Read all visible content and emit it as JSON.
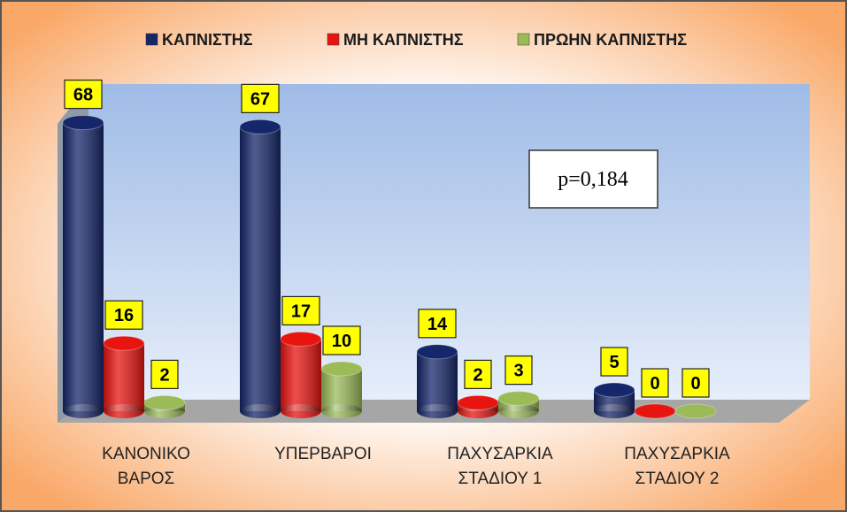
{
  "chart_data": {
    "type": "bar3d",
    "categories": [
      "ΚΑΝΟΝΙΚΟ ΒΑΡΟΣ",
      "ΥΠΕΡΒΑΡΟΙ",
      "ΠΑΧΥΣΑΡΚΙΑ ΣΤΑΔΙΟΥ 1",
      "ΠΑΧΥΣΑΡΚΙΑ ΣΤΑΔΙΟΥ 2"
    ],
    "series": [
      {
        "name": "ΚΑΠΝΙΣΤΗΣ",
        "color": "#16266a",
        "values": [
          68,
          67,
          14,
          5
        ]
      },
      {
        "name": "ΜΗ ΚΑΠΝΙΣΤΗΣ",
        "color": "#e8140f",
        "values": [
          16,
          17,
          2,
          0
        ]
      },
      {
        "name": "ΠΡΩΗΝ ΚΑΠΝΙΣΤΗΣ",
        "color": "#9bbb59",
        "values": [
          2,
          10,
          3,
          0
        ]
      }
    ],
    "annotation": "p=0,184",
    "legend": "top"
  }
}
